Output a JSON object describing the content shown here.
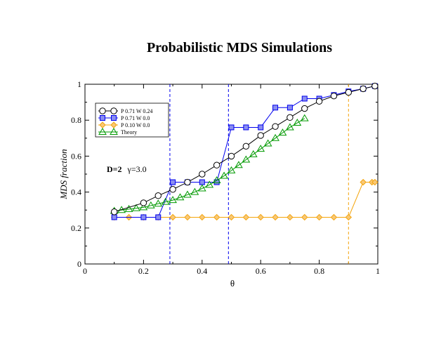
{
  "chart_data": {
    "type": "line",
    "title": "Probabilistic MDS Simulations",
    "xlabel": "θ",
    "ylabel": "MDS fraction",
    "xlim": [
      0,
      1
    ],
    "ylim": [
      0,
      1
    ],
    "x_ticks": [
      "0",
      "0.2",
      "0.4",
      "0.6",
      "0.8",
      "1"
    ],
    "y_ticks": [
      "0",
      "0.2",
      "0.4",
      "0.6",
      "0.8",
      "1"
    ],
    "annotation": {
      "prefix": "D=2",
      "gamma_symbol": "γ",
      "gamma_value": "=3.0"
    },
    "legend_position": "top-left",
    "series": [
      {
        "name": "P 0.71 W 0.24",
        "color": "#000000",
        "marker": "circle",
        "x": [
          0.1,
          0.2,
          0.25,
          0.3,
          0.35,
          0.4,
          0.45,
          0.5,
          0.55,
          0.6,
          0.65,
          0.7,
          0.75,
          0.8,
          0.85,
          0.9,
          0.95,
          0.99
        ],
        "y": [
          0.29,
          0.34,
          0.38,
          0.415,
          0.455,
          0.5,
          0.55,
          0.6,
          0.655,
          0.715,
          0.765,
          0.815,
          0.865,
          0.905,
          0.935,
          0.955,
          0.975,
          0.99
        ]
      },
      {
        "name": "P 0.71 W 0.0",
        "color": "#0000ee",
        "marker": "square",
        "x": [
          0.1,
          0.2,
          0.25,
          0.3,
          0.35,
          0.4,
          0.45,
          0.5,
          0.55,
          0.6,
          0.65,
          0.7,
          0.75,
          0.8,
          0.85,
          0.9,
          0.95,
          0.99
        ],
        "y": [
          0.26,
          0.26,
          0.26,
          0.455,
          0.455,
          0.455,
          0.455,
          0.76,
          0.76,
          0.76,
          0.87,
          0.87,
          0.92,
          0.92,
          0.94,
          0.96,
          0.975,
          0.99
        ]
      },
      {
        "name": "P 0.10 W 0.0",
        "color": "#f4a40a",
        "marker": "diamond",
        "x": [
          0.1,
          0.15,
          0.2,
          0.25,
          0.3,
          0.35,
          0.4,
          0.45,
          0.5,
          0.55,
          0.6,
          0.65,
          0.7,
          0.75,
          0.8,
          0.85,
          0.9,
          0.95,
          0.98,
          0.99
        ],
        "y": [
          0.26,
          0.26,
          0.26,
          0.26,
          0.26,
          0.26,
          0.26,
          0.26,
          0.26,
          0.26,
          0.26,
          0.26,
          0.26,
          0.26,
          0.26,
          0.26,
          0.26,
          0.455,
          0.455,
          0.455
        ]
      },
      {
        "name": "Theory",
        "color": "#009900",
        "marker": "triangle",
        "x": [
          0.1,
          0.125,
          0.15,
          0.175,
          0.2,
          0.225,
          0.25,
          0.275,
          0.3,
          0.325,
          0.35,
          0.375,
          0.4,
          0.425,
          0.45,
          0.475,
          0.5,
          0.525,
          0.55,
          0.575,
          0.6,
          0.625,
          0.65,
          0.675,
          0.7,
          0.725,
          0.75
        ],
        "y": [
          0.295,
          0.3,
          0.305,
          0.31,
          0.315,
          0.325,
          0.335,
          0.345,
          0.355,
          0.37,
          0.385,
          0.4,
          0.42,
          0.44,
          0.465,
          0.49,
          0.52,
          0.55,
          0.58,
          0.61,
          0.64,
          0.67,
          0.7,
          0.73,
          0.76,
          0.785,
          0.81
        ]
      }
    ],
    "vertical_lines": [
      {
        "x": 0.29,
        "color": "#0000ee"
      },
      {
        "x": 0.49,
        "color": "#0000ee"
      },
      {
        "x": 0.9,
        "color": "#f4a40a"
      }
    ]
  }
}
